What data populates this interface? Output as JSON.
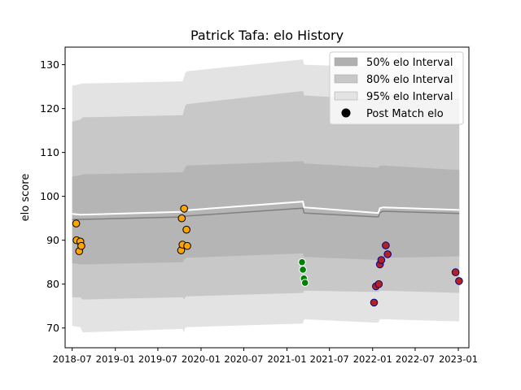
{
  "chart_data": {
    "type": "scatter",
    "title": "Patrick Tafa: elo History",
    "xlabel": "",
    "ylabel": "elo score",
    "xlim": [
      "2018-06-01",
      "2023-02-15"
    ],
    "ylim": [
      65.5,
      134
    ],
    "x_ticks": [
      "2018-07",
      "2019-01",
      "2019-07",
      "2020-01",
      "2020-07",
      "2021-01",
      "2021-07",
      "2022-01",
      "2022-07",
      "2023-01"
    ],
    "y_ticks": [
      70,
      80,
      90,
      100,
      110,
      120,
      130
    ],
    "grid": false,
    "legend_position": "top-right",
    "legend": [
      {
        "label": "50% elo Interval",
        "kind": "patch",
        "color": "#b0b0b0"
      },
      {
        "label": "80% elo Interval",
        "kind": "patch",
        "color": "#c8c8c8"
      },
      {
        "label": "95% elo Interval",
        "kind": "patch",
        "color": "#e3e3e3"
      },
      {
        "label": "Post Match elo",
        "kind": "marker",
        "color": "#000000"
      }
    ],
    "bands": [
      {
        "name": "95% elo Interval",
        "color": "#e3e3e3",
        "x": [
          "2018-07-01",
          "2018-08-05",
          "2018-08-15",
          "2019-10-15",
          "2019-10-20",
          "2019-10-25",
          "2019-11-01",
          "2021-03-10",
          "2021-03-15",
          "2022-01-25",
          "2022-02-01",
          "2022-02-15",
          "2023-01-05"
        ],
        "lower": [
          70.5,
          70.2,
          69.0,
          69.8,
          69.0,
          70.0,
          70.2,
          71.0,
          72.0,
          71.2,
          72.0,
          72.0,
          71.5
        ],
        "upper": [
          125.2,
          125.6,
          125.7,
          126.2,
          127.0,
          128.0,
          128.5,
          131.2,
          130.0,
          129.4,
          129.8,
          130.0,
          129.3
        ]
      },
      {
        "name": "80% elo Interval",
        "color": "#c8c8c8",
        "x": [
          "2018-07-01",
          "2018-08-05",
          "2018-08-15",
          "2019-10-15",
          "2019-10-20",
          "2019-10-25",
          "2019-11-01",
          "2021-03-10",
          "2021-03-15",
          "2022-01-25",
          "2022-02-01",
          "2022-02-15",
          "2023-01-05"
        ],
        "lower": [
          77.0,
          77.0,
          76.5,
          77.0,
          76.5,
          77.0,
          77.2,
          78.0,
          78.5,
          78.2,
          78.5,
          78.5,
          78.0
        ],
        "upper": [
          117.0,
          117.5,
          118.0,
          118.5,
          119.5,
          120.5,
          121.0,
          124.0,
          123.0,
          122.0,
          123.0,
          123.3,
          122.3
        ]
      },
      {
        "name": "50% elo Interval",
        "color": "#b5b5b5",
        "x": [
          "2018-07-01",
          "2018-08-05",
          "2018-08-15",
          "2019-10-15",
          "2019-10-20",
          "2019-10-25",
          "2019-11-01",
          "2021-03-10",
          "2021-03-15",
          "2022-01-25",
          "2022-02-01",
          "2022-02-15",
          "2023-01-05"
        ],
        "lower": [
          84.8,
          84.5,
          84.5,
          85.0,
          85.5,
          85.8,
          86.0,
          87.0,
          86.2,
          85.5,
          86.0,
          86.0,
          86.3
        ],
        "upper": [
          104.5,
          104.8,
          105.0,
          105.5,
          106.0,
          106.5,
          107.0,
          108.0,
          107.5,
          106.5,
          107.0,
          107.0,
          106.0
        ]
      }
    ],
    "lines": [
      {
        "name": "median",
        "color": "#808080",
        "width": 1.5,
        "x": [
          "2018-07-01",
          "2019-10-20",
          "2019-10-25",
          "2021-03-10",
          "2021-03-15",
          "2022-01-25",
          "2022-02-01",
          "2022-02-15",
          "2023-01-05"
        ],
        "y": [
          94.7,
          95.3,
          95.5,
          97.3,
          96.2,
          95.3,
          96.3,
          96.6,
          96.1
        ]
      },
      {
        "name": "mean",
        "color": "#ffffff",
        "width": 2,
        "x": [
          "2018-07-01",
          "2018-08-05",
          "2019-10-20",
          "2019-10-25",
          "2021-03-10",
          "2021-03-15",
          "2022-01-25",
          "2022-02-01",
          "2022-02-15",
          "2023-01-05"
        ],
        "y": [
          96.0,
          95.8,
          96.5,
          96.8,
          98.8,
          97.5,
          96.2,
          97.3,
          97.5,
          96.9
        ]
      }
    ],
    "series": [
      {
        "name": "Post Match elo",
        "fill": "#ffa500",
        "edge": "#000000",
        "points": [
          {
            "x": "2018-07-18",
            "y": 93.8
          },
          {
            "x": "2018-07-20",
            "y": 90.0
          },
          {
            "x": "2018-07-31",
            "y": 87.5
          },
          {
            "x": "2018-08-05",
            "y": 89.7
          },
          {
            "x": "2018-08-09",
            "y": 88.7
          },
          {
            "x": "2019-10-08",
            "y": 87.7
          },
          {
            "x": "2019-10-11",
            "y": 95.0
          },
          {
            "x": "2019-10-14",
            "y": 89.0
          },
          {
            "x": "2019-10-21",
            "y": 97.2
          },
          {
            "x": "2019-10-31",
            "y": 92.4
          },
          {
            "x": "2019-11-03",
            "y": 88.7
          }
        ]
      },
      {
        "name": "",
        "fill": "#008000",
        "edge": "#ffffff",
        "points": [
          {
            "x": "2021-03-06",
            "y": 85.0
          },
          {
            "x": "2021-03-10",
            "y": 83.3
          },
          {
            "x": "2021-03-14",
            "y": 81.3
          },
          {
            "x": "2021-03-19",
            "y": 80.3
          }
        ]
      },
      {
        "name": "",
        "fill": "#b22222",
        "edge": "#00008b",
        "points": [
          {
            "x": "2022-01-07",
            "y": 75.8
          },
          {
            "x": "2022-01-15",
            "y": 79.5
          },
          {
            "x": "2022-01-27",
            "y": 80.0
          },
          {
            "x": "2022-02-01",
            "y": 84.5
          },
          {
            "x": "2022-02-07",
            "y": 85.5
          },
          {
            "x": "2022-02-26",
            "y": 88.8
          },
          {
            "x": "2022-03-06",
            "y": 86.8
          },
          {
            "x": "2022-12-20",
            "y": 82.7
          },
          {
            "x": "2023-01-04",
            "y": 80.7
          }
        ]
      }
    ]
  }
}
